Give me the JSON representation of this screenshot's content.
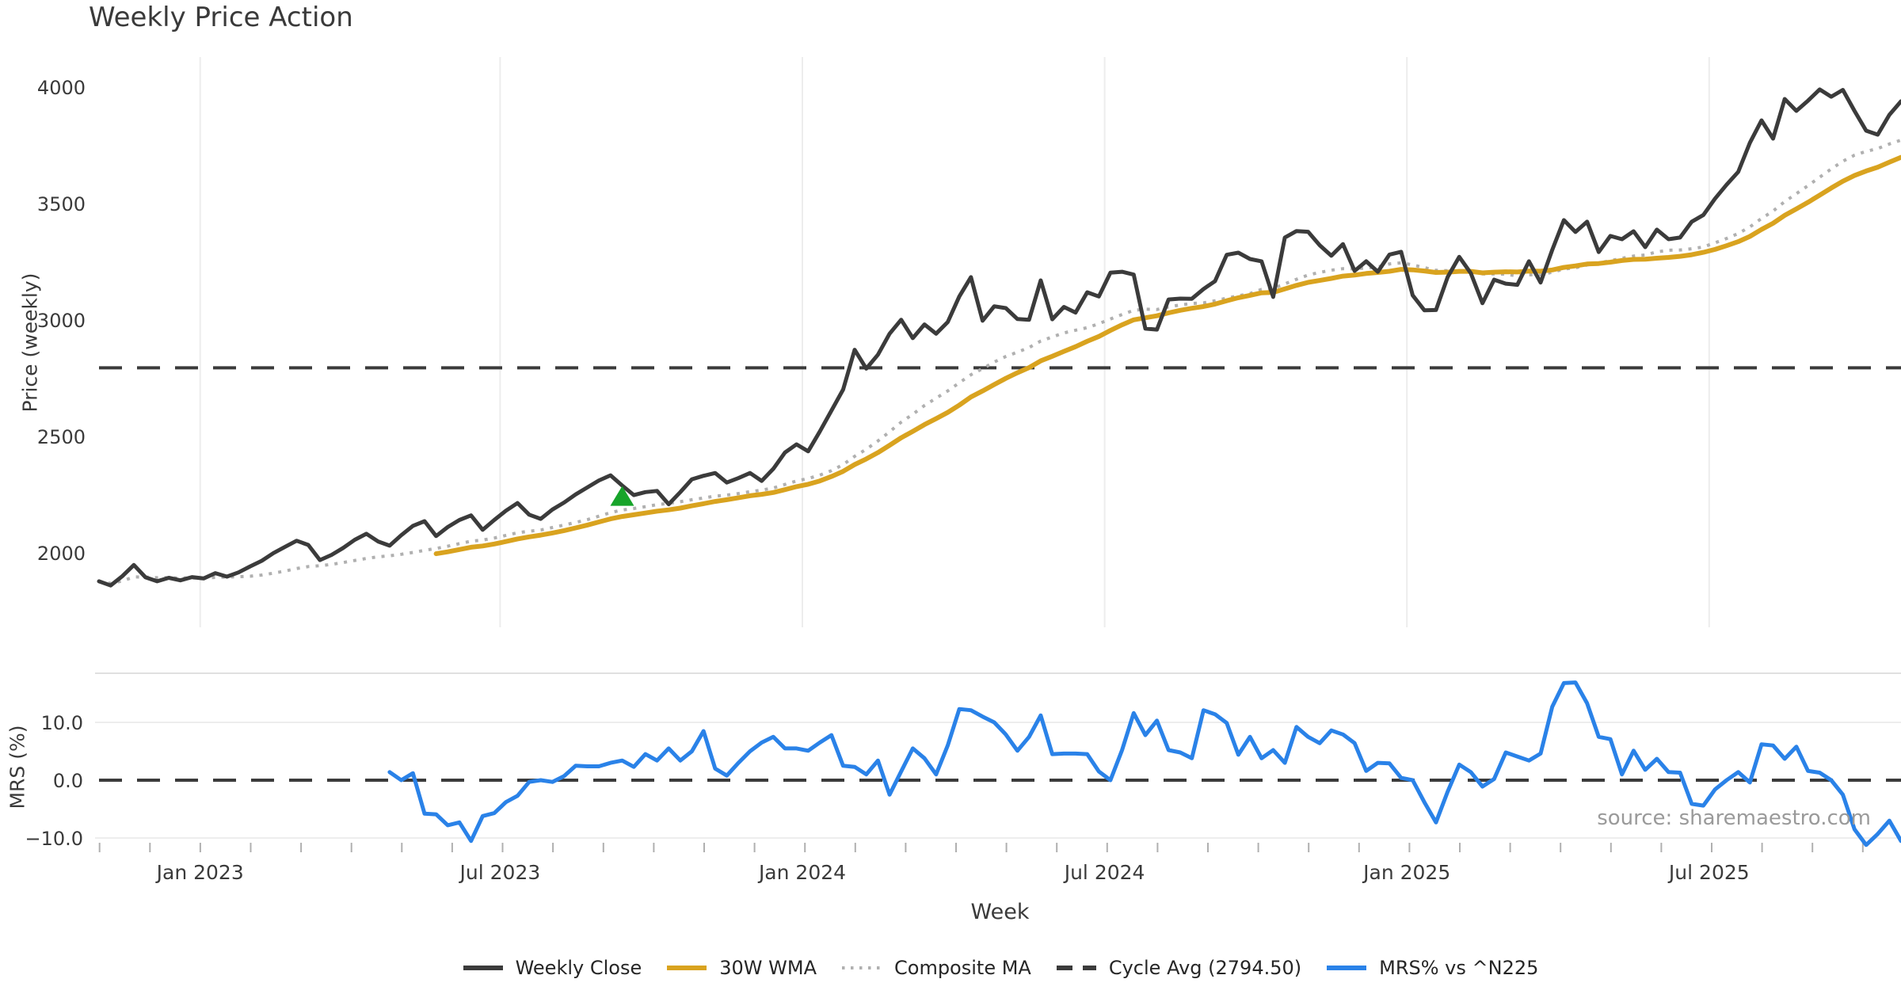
{
  "chart_data": {
    "type": "line",
    "title": "Weekly Price Action",
    "source": "source: sharemaestro.com",
    "x_axis": {
      "label": "Week",
      "major_ticks": [
        {
          "week": 8.7,
          "label": "Jan 2023"
        },
        {
          "week": 34.5,
          "label": "Jul 2023"
        },
        {
          "week": 60.5,
          "label": "Jan 2024"
        },
        {
          "week": 86.5,
          "label": "Jul 2024"
        },
        {
          "week": 112.5,
          "label": "Jan 2025"
        },
        {
          "week": 138.5,
          "label": "Jul 2025"
        }
      ],
      "minor_tick_start_week": 0.05,
      "minor_tick_interval_weeks": 4.3333,
      "weeks_total": 156
    },
    "panels": {
      "top": {
        "ylabel": "Price (weekly)",
        "ylim": [
          1690,
          4120
        ],
        "yticks": [
          2000,
          2500,
          3000,
          3500,
          4000
        ],
        "grid": "vertical-only"
      },
      "bottom": {
        "ylabel": "MRS (%)",
        "ylim": [
          -13.5,
          18.5
        ],
        "yticks": [
          -10,
          0,
          10
        ],
        "ytick_labels": [
          "−10.0",
          "0.0",
          "10.0"
        ],
        "zero_line": 0,
        "grid": "horizontal-only"
      }
    },
    "series": [
      {
        "name": "Weekly Close",
        "color": "#3b3b3b",
        "style": "solid",
        "panel": "top",
        "values": [
          1878,
          1860,
          1900,
          1948,
          1895,
          1878,
          1893,
          1882,
          1896,
          1890,
          1913,
          1898,
          1916,
          1942,
          1966,
          1999,
          2026,
          2052,
          2034,
          1969,
          1991,
          2021,
          2056,
          2082,
          2049,
          2031,
          2076,
          2116,
          2136,
          2072,
          2111,
          2141,
          2161,
          2099,
          2141,
          2181,
          2214,
          2164,
          2146,
          2186,
          2216,
          2251,
          2281,
          2311,
          2333,
          2289,
          2248,
          2261,
          2266,
          2209,
          2261,
          2316,
          2331,
          2343,
          2302,
          2321,
          2343,
          2309,
          2361,
          2431,
          2466,
          2436,
          2521,
          2611,
          2701,
          2872,
          2791,
          2851,
          2941,
          3001,
          2922,
          2981,
          2941,
          2991,
          3101,
          3184,
          2997,
          3059,
          3051,
          3004,
          3001,
          3170,
          3003,
          3056,
          3032,
          3119,
          3101,
          3203,
          3207,
          3195,
          2963,
          2959,
          3088,
          3092,
          3091,
          3133,
          3167,
          3280,
          3289,
          3262,
          3252,
          3099,
          3354,
          3382,
          3379,
          3321,
          3276,
          3326,
          3211,
          3252,
          3207,
          3281,
          3293,
          3106,
          3042,
          3043,
          3184,
          3271,
          3201,
          3072,
          3173,
          3156,
          3151,
          3252,
          3161,
          3301,
          3429,
          3378,
          3422,
          3292,
          3361,
          3347,
          3381,
          3313,
          3388,
          3347,
          3354,
          3422,
          3451,
          3521,
          3581,
          3636,
          3761,
          3857,
          3779,
          3949,
          3898,
          3942,
          3990,
          3959,
          3988,
          3898,
          3813,
          3796,
          3881,
          3939
        ]
      },
      {
        "name": "30W WMA",
        "color": "#d9a31f",
        "style": "solid",
        "panel": "top",
        "derived": "wma",
        "window": 30
      },
      {
        "name": "Composite MA",
        "color": "#b0b0b0",
        "style": "dotted",
        "panel": "top",
        "derived": "composite",
        "windows": [
          10,
          20,
          30
        ]
      },
      {
        "name": "Cycle Avg (2794.50)",
        "color": "#3b3b3b",
        "style": "dashed",
        "panel": "top",
        "value": 2794.5
      },
      {
        "name": "MRS% vs ^N225",
        "color": "#2a82e8",
        "style": "solid",
        "panel": "bottom",
        "values": [
          null,
          null,
          null,
          null,
          null,
          null,
          null,
          null,
          null,
          null,
          null,
          null,
          null,
          null,
          null,
          null,
          null,
          null,
          null,
          null,
          null,
          null,
          null,
          null,
          null,
          1.4,
          0.0,
          1.2,
          -5.8,
          -5.9,
          -7.8,
          -7.3,
          -10.5,
          -6.2,
          -5.7,
          -3.8,
          -2.7,
          -0.3,
          0.0,
          -0.3,
          0.7,
          2.5,
          2.4,
          2.4,
          3.0,
          3.4,
          2.3,
          4.5,
          3.4,
          5.5,
          3.4,
          5.0,
          8.5,
          2.0,
          0.8,
          3.0,
          5.0,
          6.5,
          7.5,
          5.5,
          5.5,
          5.1,
          6.5,
          7.8,
          2.5,
          2.3,
          1.0,
          3.4,
          -2.5,
          1.5,
          5.5,
          3.8,
          1.0,
          6.0,
          12.3,
          12.1,
          11.0,
          10.0,
          7.9,
          5.1,
          7.5,
          11.2,
          4.5,
          4.6,
          4.6,
          4.5,
          1.5,
          0.0,
          5.2,
          11.6,
          7.8,
          10.3,
          5.2,
          4.8,
          3.8,
          12.1,
          11.4,
          9.9,
          4.4,
          7.5,
          3.8,
          5.2,
          3.0,
          9.2,
          7.5,
          6.4,
          8.6,
          7.9,
          6.4,
          1.6,
          3.0,
          2.9,
          0.4,
          0.0,
          -3.8,
          -7.3,
          -2.0,
          2.7,
          1.4,
          -1.1,
          0.2,
          4.8,
          4.1,
          3.4,
          4.6,
          12.7,
          16.8,
          16.9,
          13.3,
          7.5,
          7.1,
          1.0,
          5.1,
          1.8,
          3.7,
          1.4,
          1.3,
          -4.1,
          -4.4,
          -1.6,
          0.0,
          1.4,
          -0.4,
          6.2,
          6.0,
          3.7,
          5.8,
          1.6,
          1.3,
          0.0,
          -2.5,
          -8.5,
          -11.2,
          -9.3,
          -7.0,
          -10.5
        ]
      }
    ],
    "marker": {
      "type": "triangle-up",
      "color": "#17a42a",
      "week": 45,
      "price": 2243
    }
  }
}
